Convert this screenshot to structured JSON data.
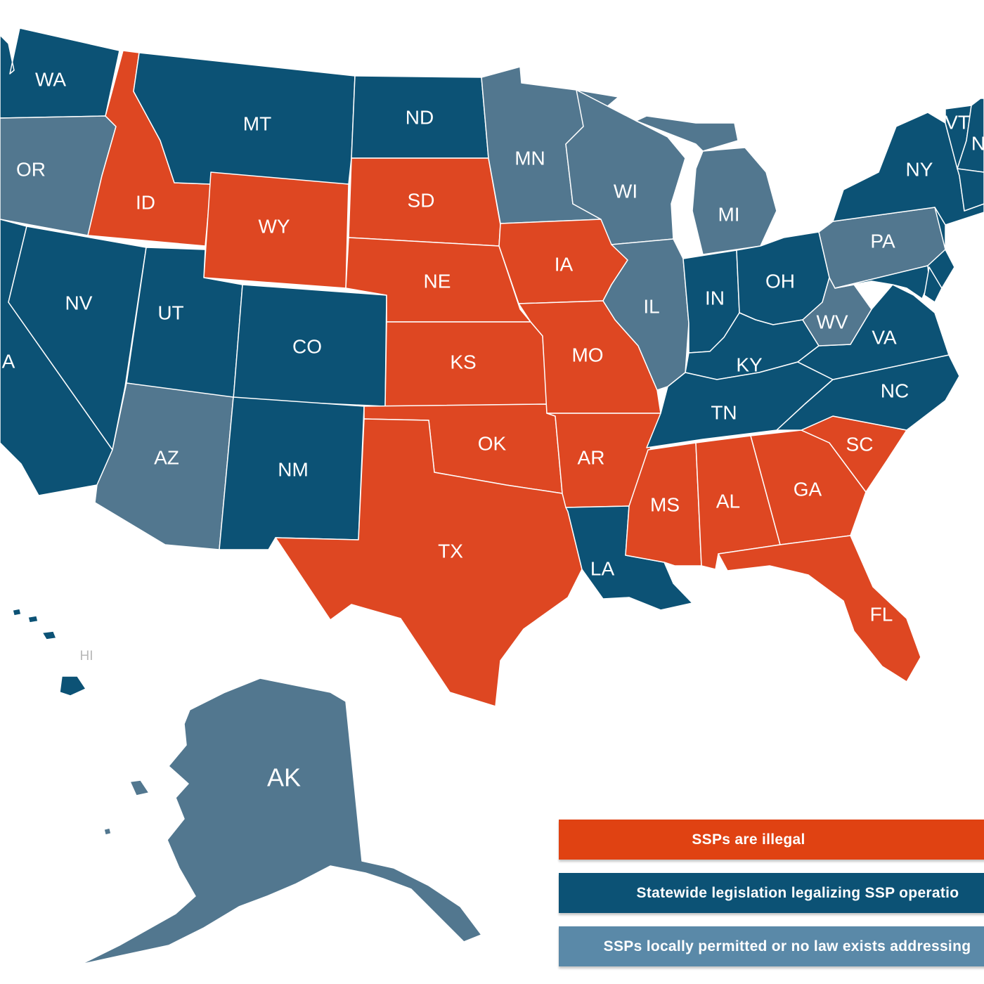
{
  "colors": {
    "illegal": "#de4722",
    "statewide_legal": "#0c5275",
    "local_or_none": "#52778f",
    "label_text": "#ffffff",
    "hi_label": "#b8b8b8"
  },
  "legend": {
    "illegal": "SSPs are illegal",
    "statewide_legal": "Statewide legislation legalizing SSP operatio",
    "local_or_none": "SSPs locally permitted or no law exists addressing"
  },
  "states": {
    "WA": {
      "label": "WA",
      "status": "statewide_legal"
    },
    "OR": {
      "label": "OR",
      "status": "local_or_none"
    },
    "CA": {
      "label": "A",
      "status": "statewide_legal"
    },
    "ID": {
      "label": "ID",
      "status": "illegal"
    },
    "NV": {
      "label": "NV",
      "status": "statewide_legal"
    },
    "MT": {
      "label": "MT",
      "status": "statewide_legal"
    },
    "WY": {
      "label": "WY",
      "status": "illegal"
    },
    "UT": {
      "label": "UT",
      "status": "statewide_legal"
    },
    "CO": {
      "label": "CO",
      "status": "statewide_legal"
    },
    "AZ": {
      "label": "AZ",
      "status": "local_or_none"
    },
    "NM": {
      "label": "NM",
      "status": "statewide_legal"
    },
    "ND": {
      "label": "ND",
      "status": "statewide_legal"
    },
    "SD": {
      "label": "SD",
      "status": "illegal"
    },
    "NE": {
      "label": "NE",
      "status": "illegal"
    },
    "KS": {
      "label": "KS",
      "status": "illegal"
    },
    "OK": {
      "label": "OK",
      "status": "illegal"
    },
    "TX": {
      "label": "TX",
      "status": "illegal"
    },
    "MN": {
      "label": "MN",
      "status": "local_or_none"
    },
    "IA": {
      "label": "IA",
      "status": "illegal"
    },
    "MO": {
      "label": "MO",
      "status": "illegal"
    },
    "AR": {
      "label": "AR",
      "status": "illegal"
    },
    "LA": {
      "label": "LA",
      "status": "statewide_legal"
    },
    "WI": {
      "label": "WI",
      "status": "local_or_none"
    },
    "IL": {
      "label": "IL",
      "status": "local_or_none"
    },
    "MI": {
      "label": "MI",
      "status": "local_or_none"
    },
    "IN": {
      "label": "IN",
      "status": "statewide_legal"
    },
    "OH": {
      "label": "OH",
      "status": "statewide_legal"
    },
    "KY": {
      "label": "KY",
      "status": "statewide_legal"
    },
    "TN": {
      "label": "TN",
      "status": "statewide_legal"
    },
    "MS": {
      "label": "MS",
      "status": "illegal"
    },
    "AL": {
      "label": "AL",
      "status": "illegal"
    },
    "GA": {
      "label": "GA",
      "status": "illegal"
    },
    "FL": {
      "label": "FL",
      "status": "illegal"
    },
    "SC": {
      "label": "SC",
      "status": "illegal"
    },
    "NC": {
      "label": "NC",
      "status": "statewide_legal"
    },
    "VA": {
      "label": "VA",
      "status": "statewide_legal"
    },
    "WV": {
      "label": "WV",
      "status": "local_or_none"
    },
    "PA": {
      "label": "PA",
      "status": "local_or_none"
    },
    "NY": {
      "label": "NY",
      "status": "statewide_legal"
    },
    "VT": {
      "label": "VT",
      "status": "statewide_legal"
    },
    "NH": {
      "label": "N",
      "status": "statewide_legal"
    },
    "NJ": {
      "label": "",
      "status": "statewide_legal"
    },
    "MD": {
      "label": "",
      "status": "statewide_legal"
    },
    "DE": {
      "label": "",
      "status": "statewide_legal"
    },
    "NEW_ENGLAND": {
      "label": "",
      "status": "statewide_legal"
    },
    "AK": {
      "label": "AK",
      "status": "local_or_none"
    },
    "HI": {
      "label": "HI",
      "status": "statewide_legal"
    }
  }
}
